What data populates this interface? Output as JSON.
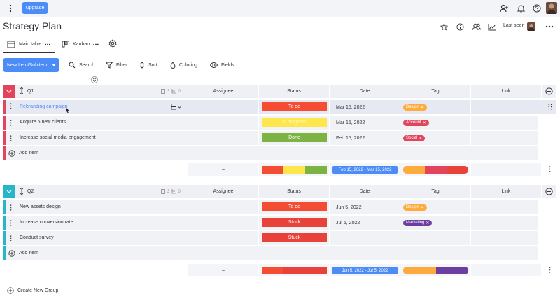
{
  "toolbar_top": {
    "upgrade_label": "Upgrade"
  },
  "board": {
    "title": "Strategy Plan",
    "last_seen_label": "Last seen"
  },
  "views": [
    {
      "label": "Main table"
    },
    {
      "label": "Kanban"
    }
  ],
  "actions": {
    "new_item_label": "New Item/Subitem",
    "search_label": "Search",
    "filter_label": "Filter",
    "sort_label": "Sort",
    "coloring_label": "Coloring",
    "fields_label": "Fields"
  },
  "columns": {
    "assignee": "Assignee",
    "status": "Status",
    "date": "Date",
    "tag": "Tag",
    "link": "Link"
  },
  "groups": [
    {
      "name": "Q1",
      "color": "#e2445c",
      "docs_count": "3",
      "subitems_count": "0",
      "items": [
        {
          "name": "Rebranding campaign",
          "status": "To do",
          "status_color": "#f54d33",
          "date": "Mar 15, 2022",
          "tag": "Design",
          "tag_color": "#fdab3d"
        },
        {
          "name": "Acquire 5 new clients",
          "status": "In progress",
          "status_color": "#fde74c",
          "date": "Mar 15, 2022",
          "tag": "Account",
          "tag_color": "#e2445c"
        },
        {
          "name": "Increase social media engagement",
          "status": "Done",
          "status_color": "#7cb342",
          "date": "Feb 15, 2022",
          "tag": "Social",
          "tag_color": "#e2445c"
        }
      ],
      "add_item_label": "Add Item",
      "summary": {
        "assignee": "–",
        "date_range": "Feb 15, 2022 - Mar 15, 2022"
      }
    },
    {
      "name": "Q2",
      "color": "#26b5c9",
      "docs_count": "3",
      "subitems_count": "0",
      "items": [
        {
          "name": "New assets design",
          "status": "To do",
          "status_color": "#f54d33",
          "date": "Jun 5, 2022",
          "tag": "Design",
          "tag_color": "#fdab3d"
        },
        {
          "name": "Increase conversion rate",
          "status": "Stuck",
          "status_color": "#e8433a",
          "date": "Jul 5, 2022",
          "tag": "Marketing",
          "tag_color": "#6b3fa0"
        },
        {
          "name": "Conduct survey",
          "status": "Stuck",
          "status_color": "#e8433a",
          "date": "",
          "tag": "",
          "tag_color": ""
        }
      ],
      "add_item_label": "Add Item",
      "summary": {
        "assignee": "–",
        "date_range": "Jun 5, 2022 - Jul 5, 2022"
      }
    }
  ],
  "create_group_label": "Create New Group",
  "colors": {
    "accent": "#4c8cf6",
    "link_blue": "#4c8cf6"
  }
}
